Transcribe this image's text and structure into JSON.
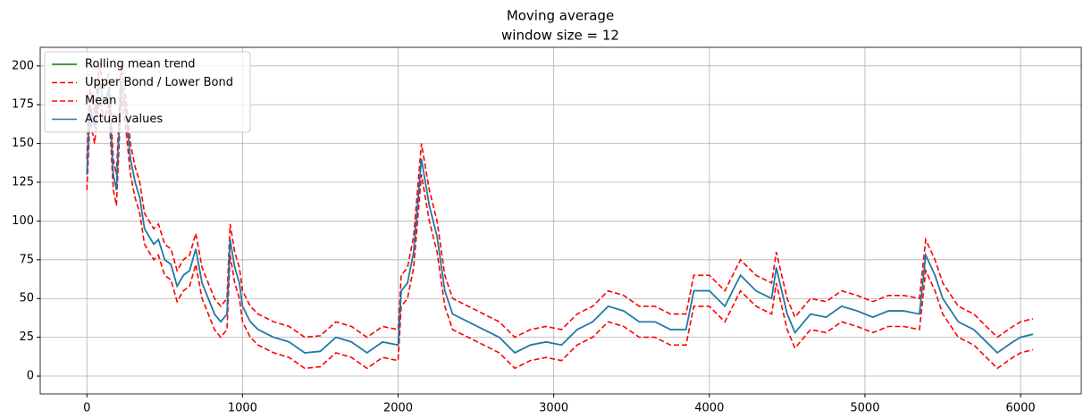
{
  "chart_data": {
    "type": "line",
    "title": "Moving average",
    "subtitle": "window size = 12",
    "x": [
      0,
      20,
      50,
      80,
      110,
      140,
      170,
      190,
      220,
      250,
      280,
      310,
      340,
      370,
      400,
      430,
      460,
      500,
      540,
      580,
      620,
      660,
      700,
      740,
      780,
      820,
      860,
      900,
      920,
      950,
      980,
      1000,
      1050,
      1100,
      1200,
      1300,
      1400,
      1500,
      1600,
      1700,
      1800,
      1900,
      2000,
      2020,
      2060,
      2100,
      2150,
      2200,
      2250,
      2300,
      2350,
      2450,
      2550,
      2650,
      2750,
      2850,
      2950,
      3050,
      3150,
      3250,
      3350,
      3450,
      3550,
      3650,
      3750,
      3850,
      3900,
      4000,
      4100,
      4200,
      4300,
      4400,
      4430,
      4500,
      4550,
      4650,
      4750,
      4850,
      4950,
      5050,
      5150,
      5250,
      5350,
      5390,
      5450,
      5500,
      5600,
      5700,
      5800,
      5850,
      5950,
      6000,
      6080
    ],
    "series": [
      {
        "name": "Rolling mean trend",
        "color": "#008000",
        "dash": false,
        "values": [
          130,
          175,
          160,
          190,
          175,
          185,
          130,
          120,
          190,
          170,
          140,
          125,
          115,
          95,
          90,
          85,
          88,
          75,
          72,
          58,
          65,
          68,
          82,
          60,
          50,
          40,
          35,
          40,
          88,
          70,
          60,
          45,
          35,
          30,
          25,
          22,
          15,
          16,
          25,
          22,
          15,
          22,
          20,
          55,
          60,
          80,
          140,
          110,
          90,
          55,
          40,
          35,
          30,
          25,
          15,
          20,
          22,
          20,
          30,
          35,
          45,
          42,
          35,
          35,
          30,
          30,
          55,
          55,
          45,
          65,
          55,
          50,
          70,
          40,
          28,
          40,
          38,
          45,
          42,
          38,
          42,
          42,
          40,
          78,
          65,
          50,
          35,
          30,
          20,
          15,
          22,
          25,
          27
        ]
      },
      {
        "name": "Upper Bond / Lower Bond",
        "color": "#ff0000",
        "dash": true,
        "values": [
          140,
          185,
          170,
          200,
          185,
          195,
          140,
          130,
          200,
          180,
          150,
          135,
          125,
          105,
          100,
          95,
          98,
          85,
          82,
          68,
          75,
          78,
          92,
          70,
          60,
          50,
          45,
          50,
          98,
          80,
          70,
          55,
          45,
          40,
          35,
          32,
          25,
          26,
          35,
          32,
          25,
          32,
          30,
          65,
          70,
          90,
          150,
          120,
          100,
          65,
          50,
          45,
          40,
          35,
          25,
          30,
          32,
          30,
          40,
          45,
          55,
          52,
          45,
          45,
          40,
          40,
          65,
          65,
          55,
          75,
          65,
          60,
          80,
          50,
          38,
          50,
          48,
          55,
          52,
          48,
          52,
          52,
          50,
          88,
          75,
          60,
          45,
          40,
          30,
          25,
          32,
          35,
          37
        ]
      },
      {
        "name": "Mean",
        "color": "#ff0000",
        "dash": true,
        "values": [
          120,
          165,
          150,
          180,
          165,
          175,
          120,
          110,
          180,
          160,
          130,
          115,
          105,
          85,
          80,
          75,
          78,
          65,
          62,
          48,
          55,
          58,
          72,
          50,
          40,
          30,
          25,
          30,
          78,
          60,
          50,
          35,
          25,
          20,
          15,
          12,
          5,
          6,
          15,
          12,
          5,
          12,
          10,
          45,
          50,
          70,
          130,
          100,
          80,
          45,
          30,
          25,
          20,
          15,
          5,
          10,
          12,
          10,
          20,
          25,
          35,
          32,
          25,
          25,
          20,
          20,
          45,
          45,
          35,
          55,
          45,
          40,
          60,
          30,
          18,
          30,
          28,
          35,
          32,
          28,
          32,
          32,
          30,
          68,
          55,
          40,
          25,
          20,
          10,
          5,
          12,
          15,
          17
        ]
      },
      {
        "name": "Actual values",
        "color": "#1f77b4",
        "dash": false,
        "values": [
          130,
          175,
          160,
          190,
          175,
          185,
          130,
          120,
          190,
          170,
          140,
          125,
          115,
          95,
          90,
          85,
          88,
          75,
          72,
          58,
          65,
          68,
          82,
          60,
          50,
          40,
          35,
          40,
          88,
          70,
          60,
          45,
          35,
          30,
          25,
          22,
          15,
          16,
          25,
          22,
          15,
          22,
          20,
          55,
          60,
          80,
          140,
          110,
          90,
          55,
          40,
          35,
          30,
          25,
          15,
          20,
          22,
          20,
          30,
          35,
          45,
          42,
          35,
          35,
          30,
          30,
          55,
          55,
          45,
          65,
          55,
          50,
          70,
          40,
          28,
          40,
          38,
          45,
          42,
          38,
          42,
          42,
          40,
          78,
          65,
          50,
          35,
          30,
          20,
          15,
          22,
          25,
          27
        ]
      }
    ],
    "xlim": [
      -300,
      6390
    ],
    "xticks": [
      0,
      1000,
      2000,
      3000,
      4000,
      5000,
      6000
    ],
    "ylim": [
      -11.5,
      212
    ],
    "yticks": [
      0,
      25,
      50,
      75,
      100,
      125,
      150,
      175,
      200
    ],
    "grid": true,
    "legend": "upper left"
  }
}
